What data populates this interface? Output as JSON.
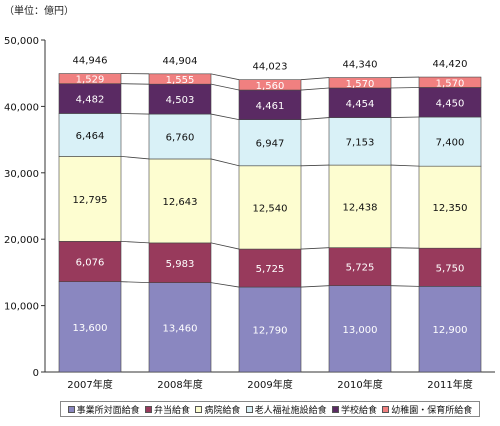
{
  "unit_label": "（単位：億円）",
  "chart_data": {
    "type": "bar",
    "stacked": true,
    "categories": [
      "2007年度",
      "2008年度",
      "2009年度",
      "2010年度",
      "2011年度"
    ],
    "totals": [
      "44,946",
      "44,904",
      "44,023",
      "44,340",
      "44,420"
    ],
    "yticks": [
      "0",
      "10,000",
      "20,000",
      "30,000",
      "40,000",
      "50,000"
    ],
    "ylim": [
      0,
      50000
    ],
    "grid": false,
    "legend_position": "bottom",
    "series": [
      {
        "name": "事業所対面給食",
        "values": [
          13600,
          13460,
          12790,
          13000,
          12900
        ],
        "labels": [
          "13,600",
          "13,460",
          "12,790",
          "13,000",
          "12,900"
        ],
        "color": "#8a87c0",
        "label_color": "#ffffff"
      },
      {
        "name": "弁当給食",
        "values": [
          6076,
          5983,
          5725,
          5725,
          5750
        ],
        "labels": [
          "6,076",
          "5,983",
          "5,725",
          "5,725",
          "5,750"
        ],
        "color": "#983a5c",
        "label_color": "#ffffff"
      },
      {
        "name": "病院給食",
        "values": [
          12795,
          12643,
          12540,
          12438,
          12350
        ],
        "labels": [
          "12,795",
          "12,643",
          "12,540",
          "12,438",
          "12,350"
        ],
        "color": "#fdfdd0",
        "label_color": "#111111"
      },
      {
        "name": "老人福祉施設給食",
        "values": [
          6464,
          6760,
          6947,
          7153,
          7400
        ],
        "labels": [
          "6,464",
          "6,760",
          "6,947",
          "7,153",
          "7,400"
        ],
        "color": "#d9f1f7",
        "label_color": "#111111"
      },
      {
        "name": "学校給食",
        "values": [
          4482,
          4503,
          4461,
          4454,
          4450
        ],
        "labels": [
          "4,482",
          "4,503",
          "4,461",
          "4,454",
          "4,450"
        ],
        "color": "#5a2a63",
        "label_color": "#ffffff"
      },
      {
        "name": "幼稚園・保育所給食",
        "values": [
          1529,
          1555,
          1560,
          1570,
          1570
        ],
        "labels": [
          "1,529",
          "1,555",
          "1,560",
          "1,570",
          "1,570"
        ],
        "color": "#f08080",
        "label_color": "#ffffff"
      }
    ]
  }
}
